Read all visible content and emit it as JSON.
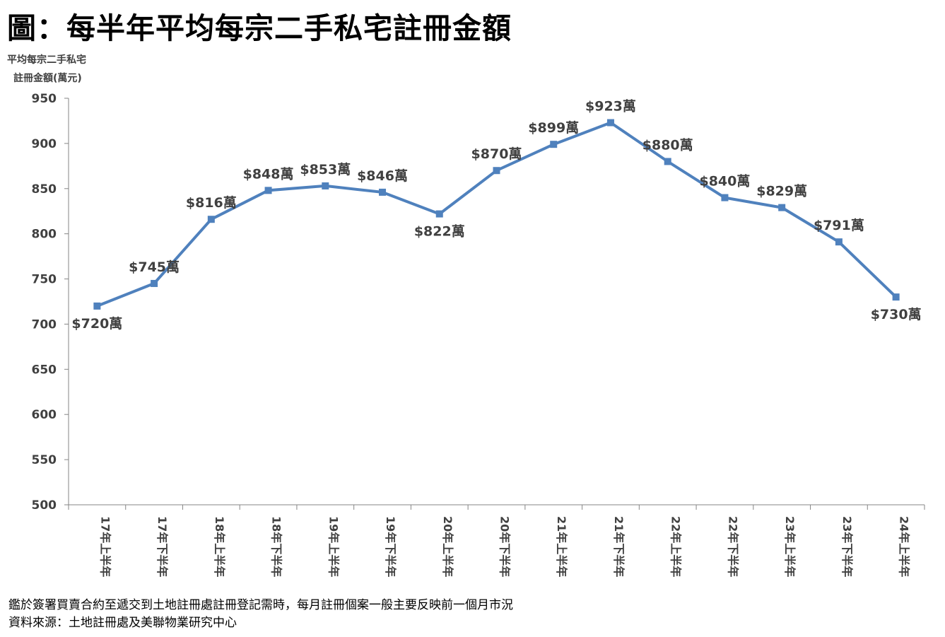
{
  "title": "圖：每半年平均每宗二手私宅註冊金額",
  "ylabel_line1": "平均每宗二手私宅",
  "ylabel_line2": "註冊金額(萬元)",
  "notes": {
    "line1": "鑑於簽署買賣合約至遞交到土地註冊處註冊登記需時，每月註冊個案一般主要反映前一個月市況",
    "line2": "資料來源：土地註冊處及美聯物業研究中心"
  },
  "chart_data": {
    "type": "line",
    "categories": [
      "17年上半年",
      "17年下半年",
      "18年上半年",
      "18年下半年",
      "19年上半年",
      "19年下半年",
      "20年上半年",
      "20年下半年",
      "21年上半年",
      "21年下半年",
      "22年上半年",
      "22年下半年",
      "23年上半年",
      "23年下半年",
      "24年上半年"
    ],
    "series": [
      {
        "values": [
          720,
          745,
          816,
          848,
          853,
          846,
          822,
          870,
          899,
          923,
          880,
          840,
          829,
          791,
          730
        ],
        "labels": [
          "$720萬",
          "$745萬",
          "$816萬",
          "$848萬",
          "$853萬",
          "$846萬",
          "$822萬",
          "$870萬",
          "$899萬",
          "$923萬",
          "$880萬",
          "$840萬",
          "$829萬",
          "$791萬",
          "$730萬"
        ],
        "label_side": [
          "below",
          "above",
          "above",
          "above",
          "above",
          "above",
          "below",
          "above",
          "above",
          "above",
          "above",
          "above",
          "above",
          "above",
          "below"
        ]
      }
    ],
    "ylim": [
      500,
      950
    ],
    "yticks": [
      500,
      550,
      600,
      650,
      700,
      750,
      800,
      850,
      900,
      950
    ],
    "grid": false,
    "legend": "none",
    "colors": {
      "line": "#4f81bd",
      "marker": "#4f81bd",
      "axis": "#868686",
      "tick_label": "#404040",
      "data_label": "#404040"
    }
  }
}
